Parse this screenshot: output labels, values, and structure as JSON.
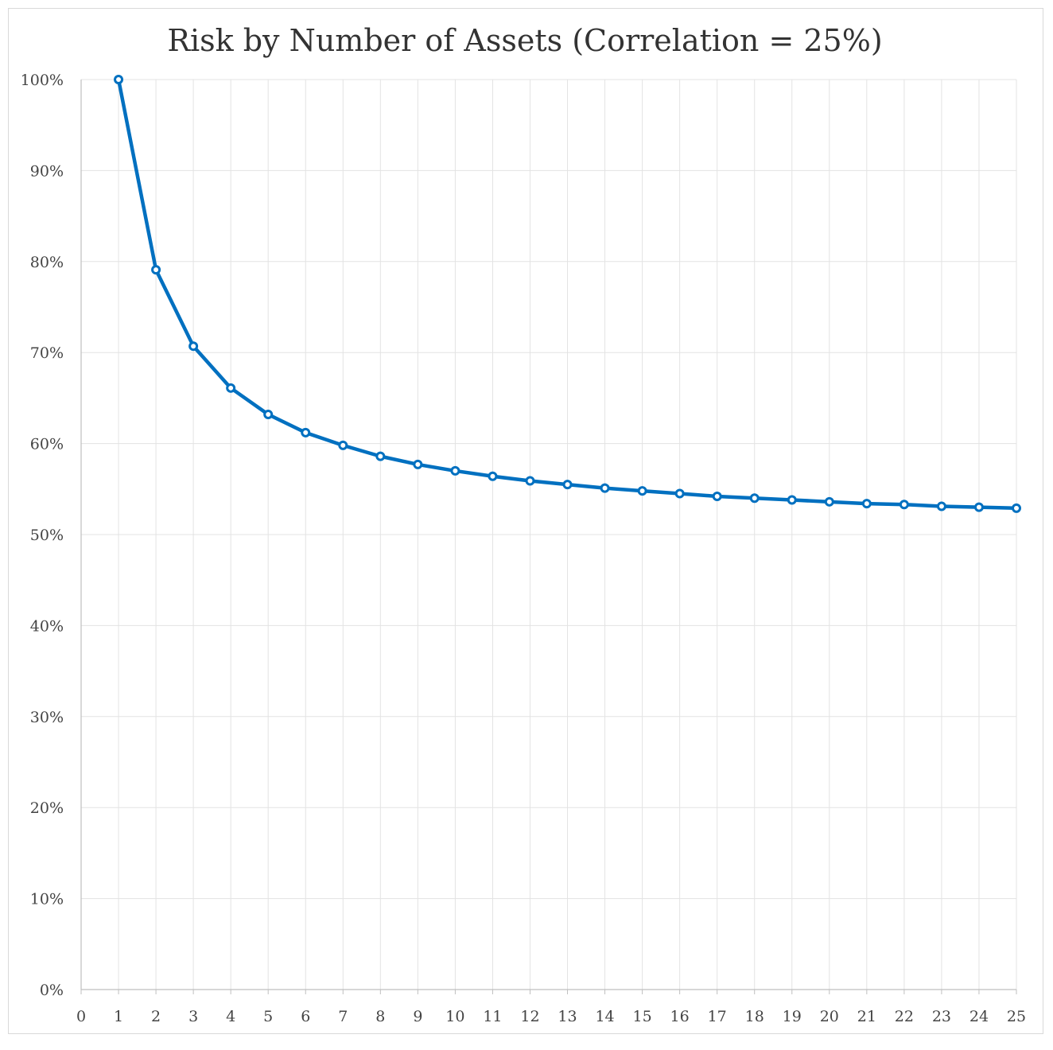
{
  "chart_data": {
    "type": "line",
    "title": "Risk by Number of Assets (Correlation = 25%)",
    "xlabel": "",
    "ylabel": "",
    "xlim": [
      0,
      25
    ],
    "ylim": [
      0,
      1
    ],
    "x_ticks": [
      "0",
      "1",
      "2",
      "3",
      "4",
      "5",
      "6",
      "7",
      "8",
      "9",
      "10",
      "11",
      "12",
      "13",
      "14",
      "15",
      "16",
      "17",
      "18",
      "19",
      "20",
      "21",
      "22",
      "23",
      "24",
      "25"
    ],
    "y_ticks": [
      "0%",
      "10%",
      "20%",
      "30%",
      "40%",
      "50%",
      "60%",
      "70%",
      "80%",
      "90%",
      "100%"
    ],
    "grid": true,
    "legend": "none",
    "line_color": "#0070c0",
    "series": [
      {
        "x": [
          1,
          2,
          3,
          4,
          5,
          6,
          7,
          8,
          9,
          10,
          11,
          12,
          13,
          14,
          15,
          16,
          17,
          18,
          19,
          20,
          21,
          22,
          23,
          24,
          25
        ],
        "values": [
          1.0,
          0.791,
          0.707,
          0.661,
          0.632,
          0.612,
          0.598,
          0.586,
          0.577,
          0.57,
          0.564,
          0.559,
          0.555,
          0.551,
          0.548,
          0.545,
          0.542,
          0.54,
          0.538,
          0.536,
          0.534,
          0.533,
          0.531,
          0.53,
          0.529
        ]
      }
    ]
  }
}
